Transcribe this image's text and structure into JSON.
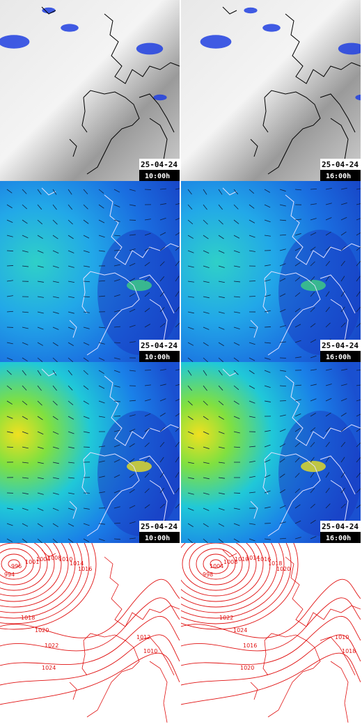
{
  "satellite": [
    {
      "date": "25-04-24",
      "time": "10:00h"
    },
    {
      "date": "25-04-24",
      "time": "16:00h"
    }
  ],
  "wind_low": [
    {
      "date": "25-04-24",
      "time": "10:00h"
    },
    {
      "date": "25-04-24",
      "time": "16:00h"
    }
  ],
  "wind_high": [
    {
      "date": "25-04-24",
      "time": "10:00h"
    },
    {
      "date": "25-04-24",
      "time": "16:00h"
    }
  ],
  "pressure": [
    {
      "isobars": [
        "994",
        "996",
        "1001",
        "1004",
        "1008",
        "1010",
        "1014",
        "1016",
        "1018",
        "1020",
        "1022",
        "1024",
        "1012",
        "1010"
      ]
    },
    {
      "isobars": [
        "998",
        "1004",
        "1008",
        "1010",
        "1014",
        "1016",
        "1018",
        "1020",
        "1022",
        "1024",
        "1016",
        "1020",
        "1010",
        "1018"
      ]
    }
  ]
}
